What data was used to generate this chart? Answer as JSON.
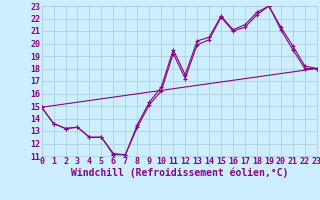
{
  "xlabel": "Windchill (Refroidissement éolien,°C)",
  "bg_color": "#cceeff",
  "grid_color": "#aaccdd",
  "line_color": "#880088",
  "xlim": [
    0,
    23
  ],
  "ylim": [
    11,
    23
  ],
  "xticks": [
    0,
    1,
    2,
    3,
    4,
    5,
    6,
    7,
    8,
    9,
    10,
    11,
    12,
    13,
    14,
    15,
    16,
    17,
    18,
    19,
    20,
    21,
    22,
    23
  ],
  "yticks": [
    11,
    12,
    13,
    14,
    15,
    16,
    17,
    18,
    19,
    20,
    21,
    22,
    23
  ],
  "line1_x": [
    0,
    1,
    2,
    3,
    4,
    5,
    6,
    7,
    8,
    9,
    10,
    11,
    12,
    13,
    14,
    15,
    16,
    17,
    18,
    19,
    20,
    21,
    22,
    23
  ],
  "line1_y": [
    14.9,
    13.6,
    13.2,
    13.3,
    12.5,
    12.5,
    11.1,
    11.1,
    13.3,
    15.1,
    16.2,
    19.2,
    17.2,
    19.9,
    20.3,
    22.1,
    21.0,
    21.3,
    22.3,
    23.0,
    21.1,
    19.5,
    18.0,
    18.0
  ],
  "line2_x": [
    0,
    1,
    2,
    3,
    4,
    5,
    6,
    7,
    8,
    9,
    10,
    11,
    12,
    13,
    14,
    15,
    16,
    17,
    18,
    19,
    20,
    21,
    22,
    23
  ],
  "line2_y": [
    14.9,
    13.6,
    13.2,
    13.3,
    12.5,
    12.5,
    11.2,
    11.1,
    13.5,
    15.3,
    16.5,
    19.5,
    17.5,
    20.2,
    20.5,
    22.2,
    21.1,
    21.5,
    22.5,
    23.0,
    21.3,
    19.8,
    18.2,
    18.0
  ],
  "line3_x": [
    0,
    23
  ],
  "line3_y": [
    14.9,
    18.0
  ],
  "tick_fontsize": 6,
  "label_fontsize": 7
}
